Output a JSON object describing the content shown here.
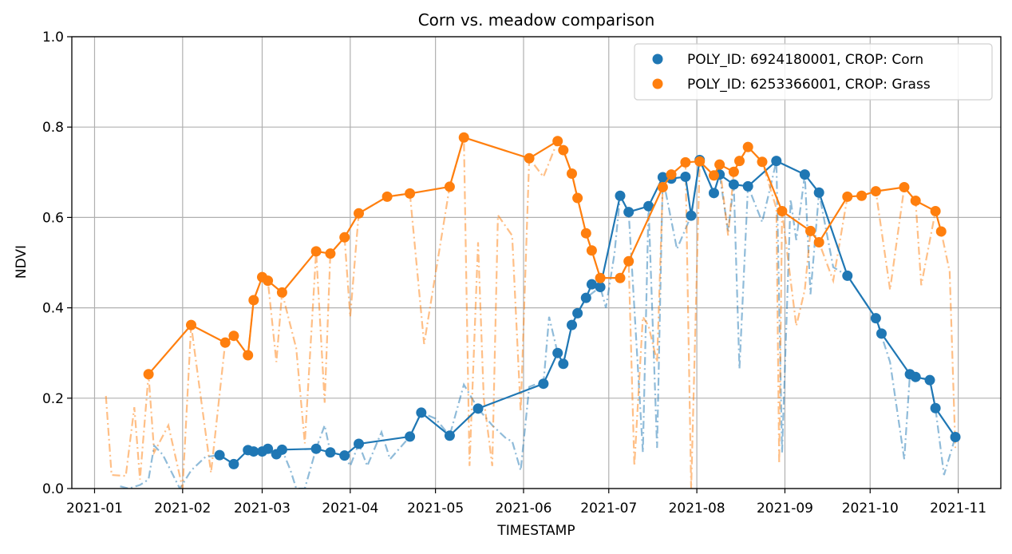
{
  "chart_data": {
    "type": "line",
    "title": "Corn vs. meadow comparison",
    "xlabel": "TIMESTAMP",
    "ylabel": "NDVI",
    "ylim": [
      0,
      1
    ],
    "xlim": [
      "2020-12-24",
      "2021-11-16"
    ],
    "grid": true,
    "legend_position": "top-right",
    "y_ticks": [
      "0.0",
      "0.2",
      "0.4",
      "0.6",
      "0.8",
      "1.0"
    ],
    "x_ticks": [
      "2021-01",
      "2021-02",
      "2021-03",
      "2021-04",
      "2021-05",
      "2021-06",
      "2021-07",
      "2021-08",
      "2021-09",
      "2021-10",
      "2021-11"
    ],
    "series": [
      {
        "name": "POLY_ID: 6924180001, CROP: Corn",
        "color": "#1f77b4",
        "points": [
          [
            "2021-02-14",
            0.074
          ],
          [
            "2021-02-19",
            0.054
          ],
          [
            "2021-02-24",
            0.085
          ],
          [
            "2021-02-26",
            0.082
          ],
          [
            "2021-03-01",
            0.082
          ],
          [
            "2021-03-03",
            0.088
          ],
          [
            "2021-03-06",
            0.076
          ],
          [
            "2021-03-08",
            0.086
          ],
          [
            "2021-03-20",
            0.088
          ],
          [
            "2021-03-25",
            0.08
          ],
          [
            "2021-03-30",
            0.073
          ],
          [
            "2021-04-04",
            0.099
          ],
          [
            "2021-04-22",
            0.115
          ],
          [
            "2021-04-26",
            0.168
          ],
          [
            "2021-05-06",
            0.117
          ],
          [
            "2021-05-16",
            0.177
          ],
          [
            "2021-06-08",
            0.232
          ],
          [
            "2021-06-13",
            0.3
          ],
          [
            "2021-06-15",
            0.276
          ],
          [
            "2021-06-18",
            0.362
          ],
          [
            "2021-06-20",
            0.388
          ],
          [
            "2021-06-23",
            0.422
          ],
          [
            "2021-06-25",
            0.452
          ],
          [
            "2021-06-28",
            0.446
          ],
          [
            "2021-07-05",
            0.648
          ],
          [
            "2021-07-08",
            0.612
          ],
          [
            "2021-07-15",
            0.625
          ],
          [
            "2021-07-20",
            0.689
          ],
          [
            "2021-07-23",
            0.686
          ],
          [
            "2021-07-28",
            0.69
          ],
          [
            "2021-07-30",
            0.604
          ],
          [
            "2021-08-02",
            0.727
          ],
          [
            "2021-08-07",
            0.654
          ],
          [
            "2021-08-09",
            0.695
          ],
          [
            "2021-08-14",
            0.673
          ],
          [
            "2021-08-19",
            0.669
          ],
          [
            "2021-08-29",
            0.725
          ],
          [
            "2021-09-08",
            0.695
          ],
          [
            "2021-09-13",
            0.655
          ],
          [
            "2021-09-23",
            0.471
          ],
          [
            "2021-10-03",
            0.377
          ],
          [
            "2021-10-05",
            0.343
          ],
          [
            "2021-10-15",
            0.253
          ],
          [
            "2021-10-17",
            0.247
          ],
          [
            "2021-10-22",
            0.24
          ],
          [
            "2021-10-24",
            0.178
          ],
          [
            "2021-10-31",
            0.114
          ]
        ],
        "interpolated": [
          [
            "2021-01-10",
            0.005
          ],
          [
            "2021-01-13",
            0.0
          ],
          [
            "2021-01-17",
            0.008
          ],
          [
            "2021-01-20",
            0.02
          ],
          [
            "2021-01-22",
            0.095
          ],
          [
            "2021-01-25",
            0.075
          ],
          [
            "2021-01-31",
            0.0
          ],
          [
            "2021-02-04",
            0.04
          ],
          [
            "2021-02-09",
            0.07
          ],
          [
            "2021-02-14",
            0.074
          ],
          [
            "2021-02-19",
            0.054
          ],
          [
            "2021-02-24",
            0.085
          ],
          [
            "2021-03-01",
            0.082
          ],
          [
            "2021-03-06",
            0.076
          ],
          [
            "2021-03-08",
            0.086
          ],
          [
            "2021-03-11",
            0.04
          ],
          [
            "2021-03-13",
            0.0
          ],
          [
            "2021-03-16",
            0.0
          ],
          [
            "2021-03-20",
            0.088
          ],
          [
            "2021-03-23",
            0.14
          ],
          [
            "2021-03-25",
            0.08
          ],
          [
            "2021-03-30",
            0.073
          ],
          [
            "2021-04-01",
            0.05
          ],
          [
            "2021-04-04",
            0.099
          ],
          [
            "2021-04-07",
            0.05
          ],
          [
            "2021-04-12",
            0.125
          ],
          [
            "2021-04-15",
            0.065
          ],
          [
            "2021-04-22",
            0.115
          ],
          [
            "2021-04-26",
            0.168
          ],
          [
            "2021-05-01",
            0.155
          ],
          [
            "2021-05-06",
            0.117
          ],
          [
            "2021-05-11",
            0.23
          ],
          [
            "2021-05-16",
            0.177
          ],
          [
            "2021-05-21",
            0.14
          ],
          [
            "2021-05-26",
            0.11
          ],
          [
            "2021-05-28",
            0.105
          ],
          [
            "2021-05-31",
            0.04
          ],
          [
            "2021-06-03",
            0.225
          ],
          [
            "2021-06-05",
            0.23
          ],
          [
            "2021-06-08",
            0.232
          ],
          [
            "2021-06-10",
            0.38
          ],
          [
            "2021-06-13",
            0.3
          ],
          [
            "2021-06-15",
            0.276
          ],
          [
            "2021-06-18",
            0.362
          ],
          [
            "2021-06-20",
            0.388
          ],
          [
            "2021-06-23",
            0.422
          ],
          [
            "2021-06-28",
            0.446
          ],
          [
            "2021-06-30",
            0.4
          ],
          [
            "2021-07-03",
            0.52
          ],
          [
            "2021-07-05",
            0.648
          ],
          [
            "2021-07-08",
            0.612
          ],
          [
            "2021-07-10",
            0.4
          ],
          [
            "2021-07-13",
            0.08
          ],
          [
            "2021-07-15",
            0.625
          ],
          [
            "2021-07-18",
            0.09
          ],
          [
            "2021-07-20",
            0.689
          ],
          [
            "2021-07-25",
            0.53
          ],
          [
            "2021-07-30",
            0.604
          ],
          [
            "2021-08-02",
            0.727
          ],
          [
            "2021-08-07",
            0.654
          ],
          [
            "2021-08-09",
            0.695
          ],
          [
            "2021-08-12",
            0.57
          ],
          [
            "2021-08-14",
            0.673
          ],
          [
            "2021-08-16",
            0.265
          ],
          [
            "2021-08-19",
            0.669
          ],
          [
            "2021-08-24",
            0.59
          ],
          [
            "2021-08-29",
            0.725
          ],
          [
            "2021-08-31",
            0.08
          ],
          [
            "2021-09-03",
            0.64
          ],
          [
            "2021-09-05",
            0.55
          ],
          [
            "2021-09-08",
            0.695
          ],
          [
            "2021-09-10",
            0.43
          ],
          [
            "2021-09-13",
            0.655
          ],
          [
            "2021-09-18",
            0.49
          ],
          [
            "2021-09-23",
            0.471
          ],
          [
            "2021-10-03",
            0.377
          ],
          [
            "2021-10-08",
            0.28
          ],
          [
            "2021-10-13",
            0.065
          ],
          [
            "2021-10-15",
            0.253
          ],
          [
            "2021-10-22",
            0.24
          ],
          [
            "2021-10-24",
            0.178
          ],
          [
            "2021-10-27",
            0.03
          ],
          [
            "2021-10-31",
            0.114
          ]
        ]
      },
      {
        "name": "POLY_ID: 6253366001, CROP: Grass",
        "color": "#ff7f0e",
        "points": [
          [
            "2021-01-20",
            0.253
          ],
          [
            "2021-02-04",
            0.362
          ],
          [
            "2021-02-16",
            0.323
          ],
          [
            "2021-02-19",
            0.338
          ],
          [
            "2021-02-24",
            0.295
          ],
          [
            "2021-02-26",
            0.417
          ],
          [
            "2021-03-01",
            0.468
          ],
          [
            "2021-03-03",
            0.46
          ],
          [
            "2021-03-08",
            0.434
          ],
          [
            "2021-03-20",
            0.525
          ],
          [
            "2021-03-25",
            0.52
          ],
          [
            "2021-03-30",
            0.556
          ],
          [
            "2021-04-04",
            0.609
          ],
          [
            "2021-04-14",
            0.646
          ],
          [
            "2021-04-22",
            0.653
          ],
          [
            "2021-05-06",
            0.668
          ],
          [
            "2021-05-11",
            0.777
          ],
          [
            "2021-06-03",
            0.731
          ],
          [
            "2021-06-13",
            0.769
          ],
          [
            "2021-06-15",
            0.749
          ],
          [
            "2021-06-18",
            0.697
          ],
          [
            "2021-06-20",
            0.643
          ],
          [
            "2021-06-23",
            0.565
          ],
          [
            "2021-06-25",
            0.527
          ],
          [
            "2021-06-28",
            0.466
          ],
          [
            "2021-07-05",
            0.466
          ],
          [
            "2021-07-08",
            0.503
          ],
          [
            "2021-07-20",
            0.667
          ],
          [
            "2021-07-23",
            0.695
          ],
          [
            "2021-07-28",
            0.722
          ],
          [
            "2021-08-02",
            0.724
          ],
          [
            "2021-08-07",
            0.693
          ],
          [
            "2021-08-09",
            0.717
          ],
          [
            "2021-08-14",
            0.701
          ],
          [
            "2021-08-16",
            0.725
          ],
          [
            "2021-08-19",
            0.756
          ],
          [
            "2021-08-24",
            0.723
          ],
          [
            "2021-08-31",
            0.614
          ],
          [
            "2021-09-10",
            0.57
          ],
          [
            "2021-09-13",
            0.545
          ],
          [
            "2021-09-23",
            0.646
          ],
          [
            "2021-09-28",
            0.648
          ],
          [
            "2021-10-03",
            0.658
          ],
          [
            "2021-10-13",
            0.667
          ],
          [
            "2021-10-17",
            0.637
          ],
          [
            "2021-10-24",
            0.614
          ],
          [
            "2021-10-26",
            0.569
          ]
        ],
        "interpolated": [
          [
            "2021-01-05",
            0.205
          ],
          [
            "2021-01-07",
            0.03
          ],
          [
            "2021-01-12",
            0.028
          ],
          [
            "2021-01-15",
            0.18
          ],
          [
            "2021-01-17",
            0.02
          ],
          [
            "2021-01-20",
            0.253
          ],
          [
            "2021-01-22",
            0.08
          ],
          [
            "2021-01-27",
            0.14
          ],
          [
            "2021-02-01",
            0.0
          ],
          [
            "2021-02-04",
            0.362
          ],
          [
            "2021-02-07",
            0.22
          ],
          [
            "2021-02-11",
            0.035
          ],
          [
            "2021-02-16",
            0.323
          ],
          [
            "2021-02-19",
            0.338
          ],
          [
            "2021-02-24",
            0.295
          ],
          [
            "2021-02-26",
            0.417
          ],
          [
            "2021-03-01",
            0.468
          ],
          [
            "2021-03-03",
            0.46
          ],
          [
            "2021-03-06",
            0.28
          ],
          [
            "2021-03-08",
            0.434
          ],
          [
            "2021-03-13",
            0.31
          ],
          [
            "2021-03-16",
            0.1
          ],
          [
            "2021-03-20",
            0.525
          ],
          [
            "2021-03-23",
            0.19
          ],
          [
            "2021-03-25",
            0.52
          ],
          [
            "2021-03-30",
            0.556
          ],
          [
            "2021-04-01",
            0.38
          ],
          [
            "2021-04-04",
            0.609
          ],
          [
            "2021-04-14",
            0.646
          ],
          [
            "2021-04-22",
            0.653
          ],
          [
            "2021-04-27",
            0.32
          ],
          [
            "2021-05-06",
            0.668
          ],
          [
            "2021-05-11",
            0.777
          ],
          [
            "2021-05-13",
            0.05
          ],
          [
            "2021-05-16",
            0.545
          ],
          [
            "2021-05-18",
            0.2
          ],
          [
            "2021-05-21",
            0.05
          ],
          [
            "2021-05-23",
            0.605
          ],
          [
            "2021-05-28",
            0.56
          ],
          [
            "2021-05-31",
            0.17
          ],
          [
            "2021-06-03",
            0.731
          ],
          [
            "2021-06-08",
            0.69
          ],
          [
            "2021-06-13",
            0.769
          ],
          [
            "2021-06-15",
            0.749
          ],
          [
            "2021-06-18",
            0.697
          ],
          [
            "2021-06-20",
            0.643
          ],
          [
            "2021-06-23",
            0.565
          ],
          [
            "2021-06-25",
            0.527
          ],
          [
            "2021-06-28",
            0.466
          ],
          [
            "2021-07-05",
            0.466
          ],
          [
            "2021-07-08",
            0.503
          ],
          [
            "2021-07-10",
            0.05
          ],
          [
            "2021-07-13",
            0.38
          ],
          [
            "2021-07-15",
            0.36
          ],
          [
            "2021-07-18",
            0.28
          ],
          [
            "2021-07-20",
            0.667
          ],
          [
            "2021-07-23",
            0.695
          ],
          [
            "2021-07-28",
            0.722
          ],
          [
            "2021-07-30",
            0.0
          ],
          [
            "2021-08-02",
            0.724
          ],
          [
            "2021-08-07",
            0.693
          ],
          [
            "2021-08-09",
            0.717
          ],
          [
            "2021-08-12",
            0.56
          ],
          [
            "2021-08-14",
            0.701
          ],
          [
            "2021-08-19",
            0.756
          ],
          [
            "2021-08-24",
            0.723
          ],
          [
            "2021-08-29",
            0.62
          ],
          [
            "2021-08-30",
            0.055
          ],
          [
            "2021-08-31",
            0.614
          ],
          [
            "2021-09-05",
            0.36
          ],
          [
            "2021-09-08",
            0.44
          ],
          [
            "2021-09-10",
            0.57
          ],
          [
            "2021-09-13",
            0.545
          ],
          [
            "2021-09-18",
            0.46
          ],
          [
            "2021-09-23",
            0.646
          ],
          [
            "2021-09-28",
            0.648
          ],
          [
            "2021-10-03",
            0.658
          ],
          [
            "2021-10-08",
            0.44
          ],
          [
            "2021-10-13",
            0.667
          ],
          [
            "2021-10-17",
            0.637
          ],
          [
            "2021-10-19",
            0.45
          ],
          [
            "2021-10-24",
            0.614
          ],
          [
            "2021-10-26",
            0.569
          ],
          [
            "2021-10-29",
            0.48
          ],
          [
            "2021-10-31",
            0.09
          ]
        ]
      }
    ]
  }
}
